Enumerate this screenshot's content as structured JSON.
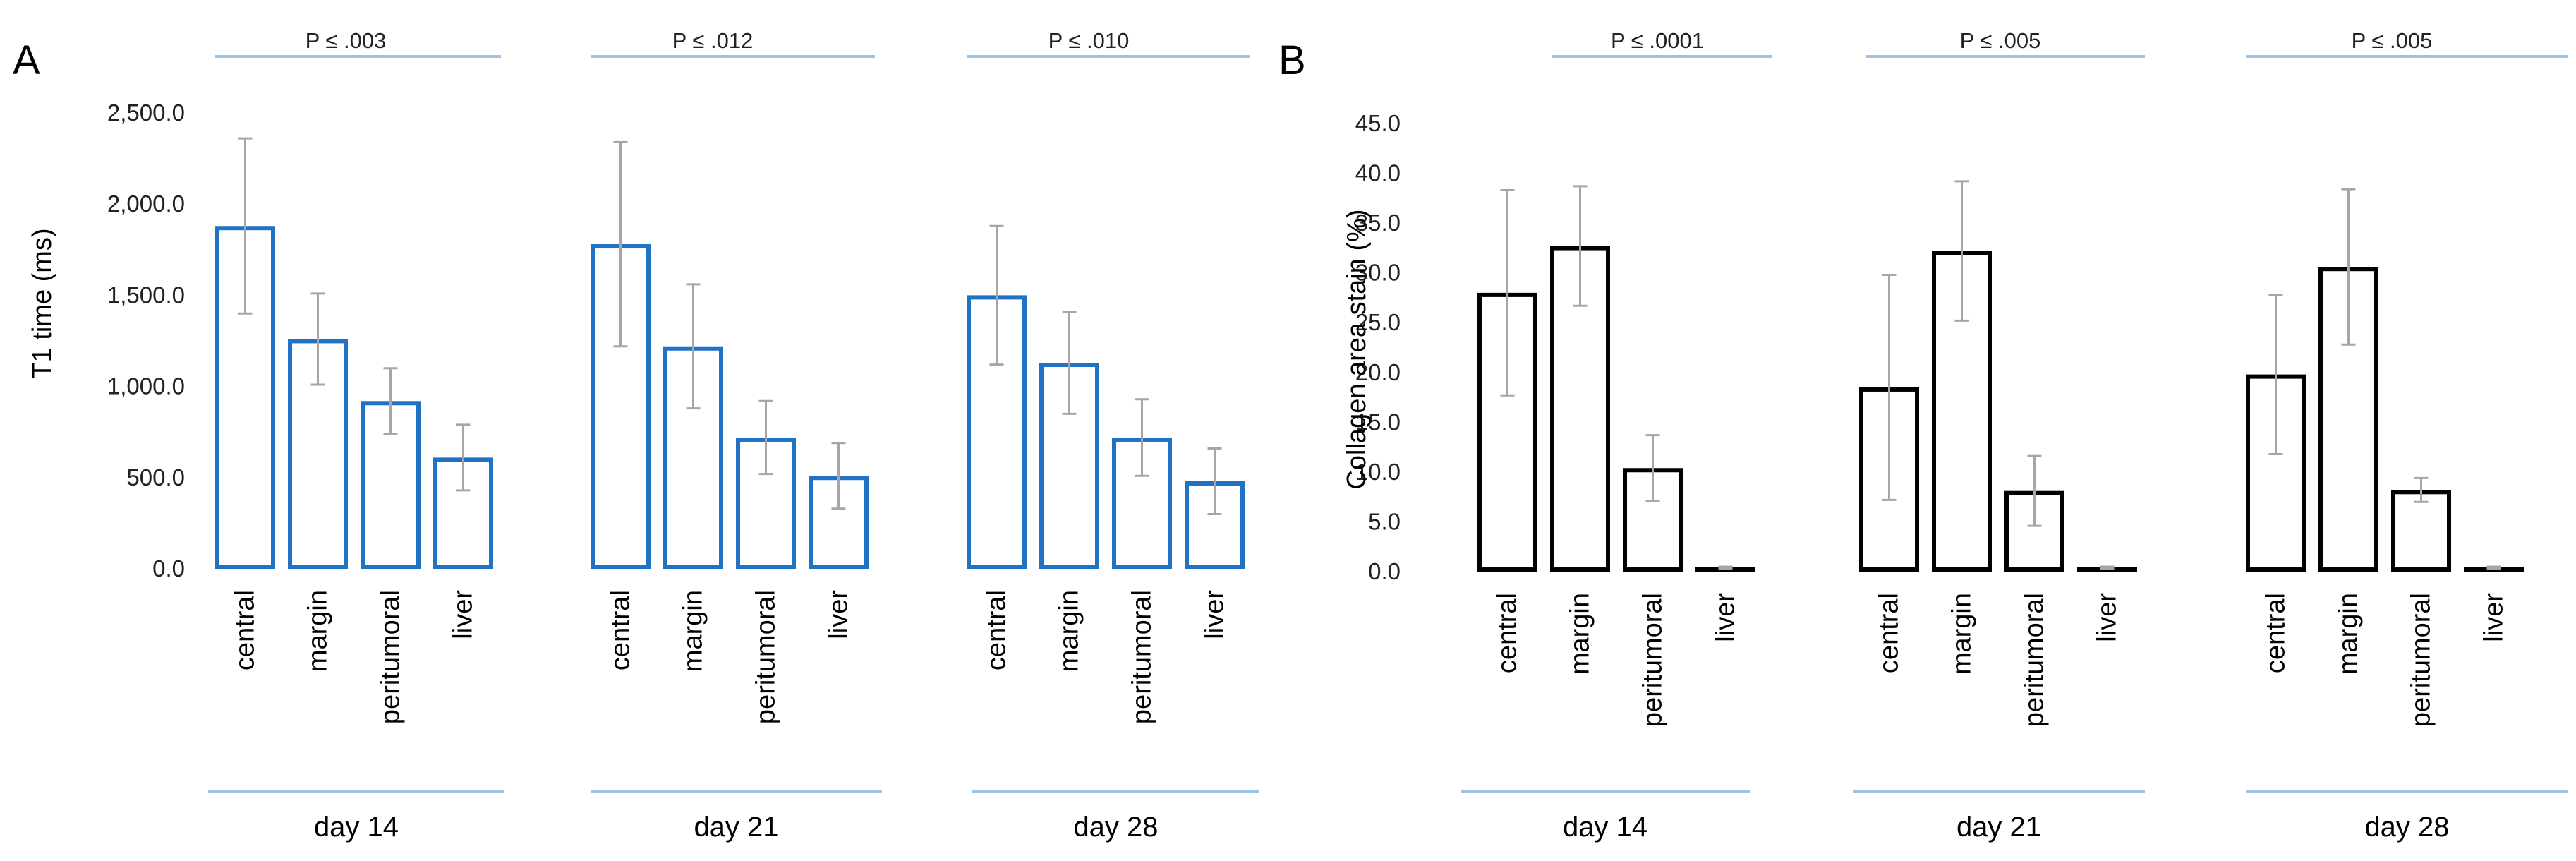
{
  "chart_data": [
    {
      "panel": "A",
      "type": "bar",
      "ylabel": "T1  time (ms)",
      "ylim": [
        0,
        2500
      ],
      "yticks": [
        "0.0",
        "500.0",
        "1,000.0",
        "1,500.0",
        "2,000.0",
        "2,500.0"
      ],
      "categories": [
        "central",
        "margin",
        "peritumoral",
        "liver"
      ],
      "groups": [
        {
          "label": "day 14",
          "p_value": "P ≤ .003",
          "values": [
            1880,
            1260,
            920,
            610
          ],
          "errors": [
            480,
            250,
            180,
            180
          ]
        },
        {
          "label": "day 21",
          "p_value": "P ≤ .012",
          "values": [
            1780,
            1220,
            720,
            510
          ],
          "errors": [
            560,
            340,
            200,
            180
          ]
        },
        {
          "label": "day 28",
          "p_value": "P ≤ .010",
          "values": [
            1500,
            1130,
            720,
            480
          ],
          "errors": [
            380,
            280,
            210,
            180
          ]
        }
      ],
      "bar_color": "#1f72c4"
    },
    {
      "panel": "B",
      "type": "bar",
      "ylabel": "Collagen area stain (%)",
      "ylim": [
        0,
        45
      ],
      "yticks": [
        "0.0",
        "5.0",
        "10.0",
        "15.0",
        "20.0",
        "25.0",
        "30.0",
        "35.0",
        "40.0",
        "45.0"
      ],
      "categories": [
        "central",
        "margin",
        "peritumoral",
        "liver"
      ],
      "groups": [
        {
          "label": "day 14",
          "p_value": "P ≤ .0001",
          "values": [
            28.0,
            32.7,
            10.4,
            0.4
          ],
          "errors": [
            10.3,
            6.0,
            3.3,
            0.1
          ]
        },
        {
          "label": "day 21",
          "p_value": "P ≤ .005",
          "values": [
            18.5,
            32.2,
            8.1,
            0.4
          ],
          "errors": [
            11.3,
            7.0,
            3.5,
            0.1
          ]
        },
        {
          "label": "day 28",
          "p_value": "P ≤ .005",
          "values": [
            19.8,
            30.6,
            8.2,
            0.4
          ],
          "errors": [
            8.0,
            7.8,
            1.2,
            0.1
          ]
        }
      ],
      "bar_color": "#000000"
    }
  ],
  "colors": {
    "bracket": "#9dc3e6",
    "error_bar": "#a6a6a6"
  }
}
